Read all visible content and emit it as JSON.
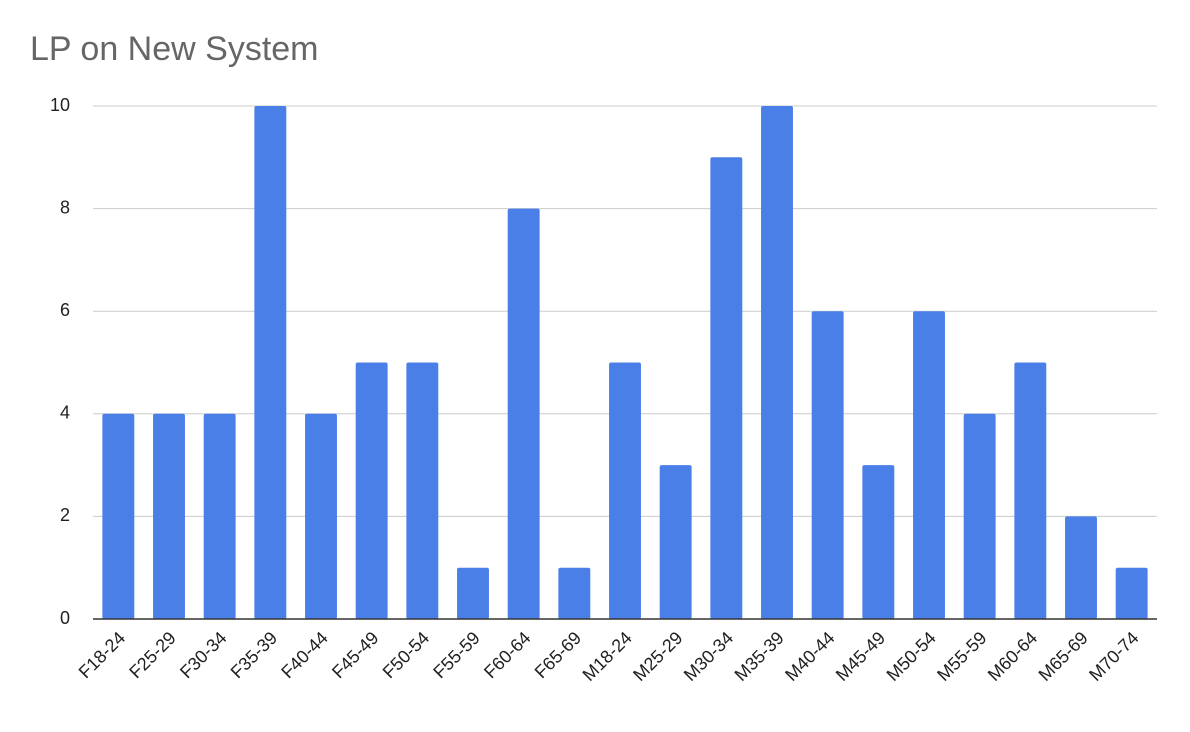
{
  "chart_data": {
    "type": "bar",
    "title": "LP on New System",
    "categories": [
      "F18-24",
      "F25-29",
      "F30-34",
      "F35-39",
      "F40-44",
      "F45-49",
      "F50-54",
      "F55-59",
      "F60-64",
      "F65-69",
      "M18-24",
      "M25-29",
      "M30-34",
      "M35-39",
      "M40-44",
      "M45-49",
      "M50-54",
      "M55-59",
      "M60-64",
      "M65-69",
      "M70-74"
    ],
    "values": [
      4,
      4,
      4,
      10,
      4,
      5,
      5,
      1,
      8,
      1,
      5,
      3,
      9,
      10,
      6,
      3,
      6,
      4,
      5,
      2,
      1
    ],
    "color": "#4a7fe8",
    "ylim": [
      0,
      10
    ],
    "yticks": [
      0,
      2,
      4,
      6,
      8,
      10
    ],
    "grid": true
  }
}
